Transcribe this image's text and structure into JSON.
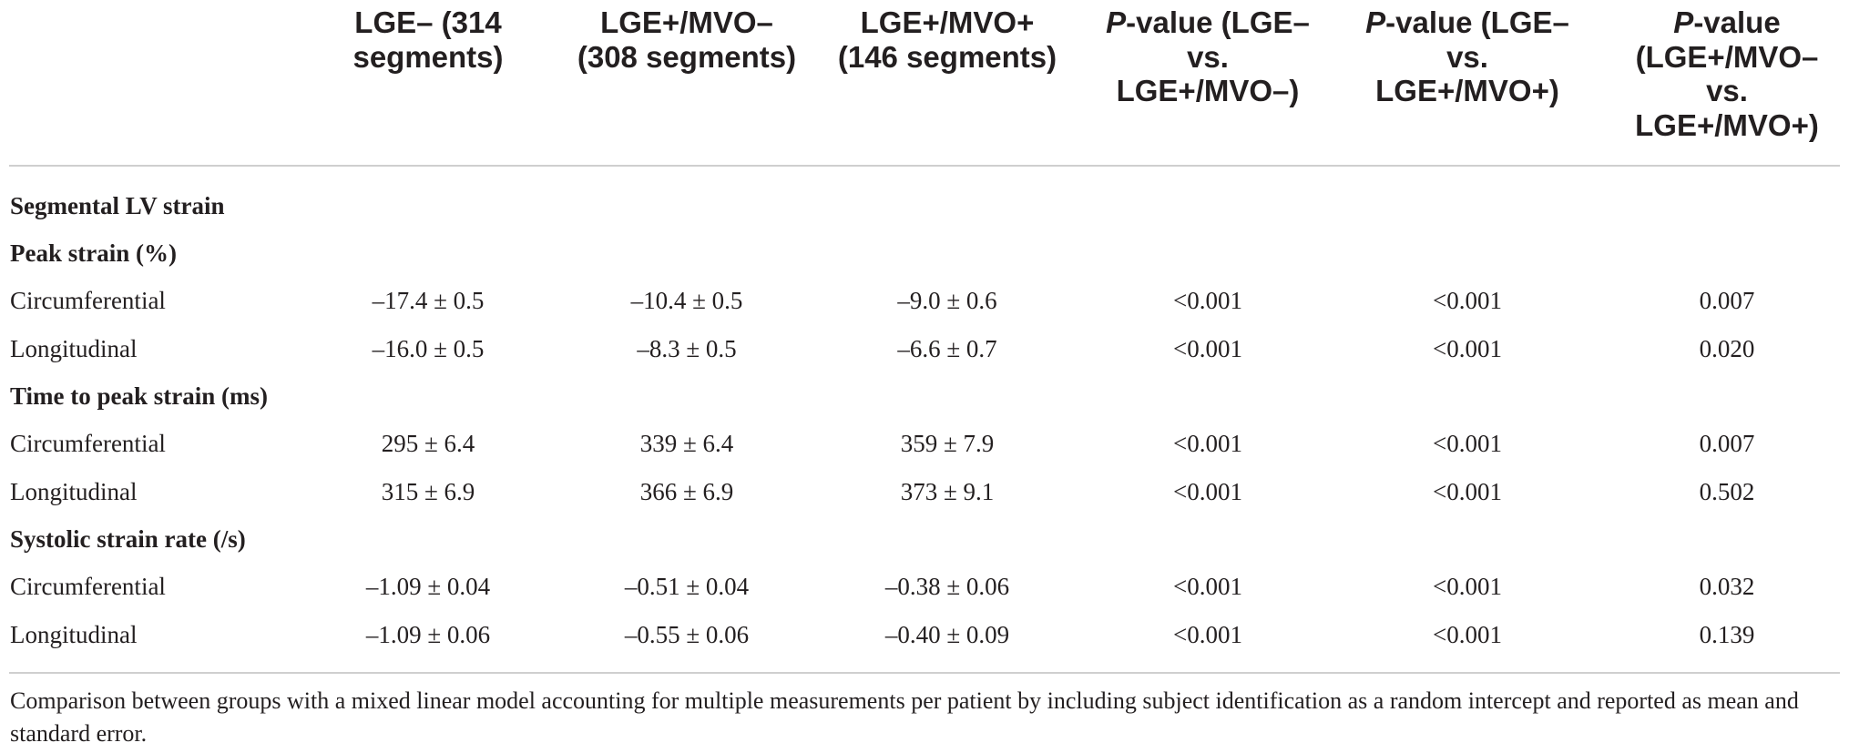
{
  "table": {
    "columns": [
      {
        "line1": "LGE– (314",
        "line2": "segments)",
        "line3": "",
        "line4": ""
      },
      {
        "line1": "LGE+/MVO–",
        "line2": "(308 segments)",
        "line3": "",
        "line4": ""
      },
      {
        "line1": "LGE+/MVO+",
        "line2": "(146 segments)",
        "line3": "",
        "line4": ""
      },
      {
        "italic": "P",
        "line1": "-value (LGE–",
        "line2": "vs.",
        "line3": "LGE+/MVO–)",
        "line4": ""
      },
      {
        "italic": "P",
        "line1": "-value (LGE–",
        "line2": "vs.",
        "line3": "LGE+/MVO+)",
        "line4": ""
      },
      {
        "italic": "P",
        "line1": "-value",
        "line2": "(LGE+/MVO–",
        "line3": "vs.",
        "line4": "LGE+/MVO+)"
      }
    ],
    "sections": {
      "segmental": "Segmental LV strain",
      "peak_strain": "Peak strain (%)",
      "time_to_peak": "Time to peak strain (ms)",
      "systolic_rate": "Systolic strain rate (/s)"
    },
    "rows": {
      "peak_circ": {
        "label": "Circumferential",
        "values": [
          "–17.4 ± 0.5",
          "–10.4 ± 0.5",
          "–9.0 ± 0.6",
          "<0.001",
          "<0.001",
          "0.007"
        ]
      },
      "peak_long": {
        "label": "Longitudinal",
        "values": [
          "–16.0 ± 0.5",
          "–8.3 ± 0.5",
          "–6.6 ± 0.7",
          "<0.001",
          "<0.001",
          "0.020"
        ]
      },
      "time_circ": {
        "label": "Circumferential",
        "values": [
          "295 ± 6.4",
          "339 ± 6.4",
          "359 ± 7.9",
          "<0.001",
          "<0.001",
          "0.007"
        ]
      },
      "time_long": {
        "label": "Longitudinal",
        "values": [
          "315 ± 6.9",
          "366 ± 6.9",
          "373 ± 9.1",
          "<0.001",
          "<0.001",
          "0.502"
        ]
      },
      "rate_circ": {
        "label": "Circumferential",
        "values": [
          "–1.09 ± 0.04",
          "–0.51 ± 0.04",
          "–0.38 ± 0.06",
          "<0.001",
          "<0.001",
          "0.032"
        ]
      },
      "rate_long": {
        "label": "Longitudinal",
        "values": [
          "–1.09 ± 0.06",
          "–0.55 ± 0.06",
          "–0.40 ± 0.09",
          "<0.001",
          "<0.001",
          "0.139"
        ]
      }
    }
  },
  "footnote": "Comparison between groups with a mixed linear model accounting for multiple measurements per patient by including subject identification as a random intercept and reported as mean and standard error.",
  "colors": {
    "text": "#231f20",
    "rule": "#cfcfcf"
  }
}
